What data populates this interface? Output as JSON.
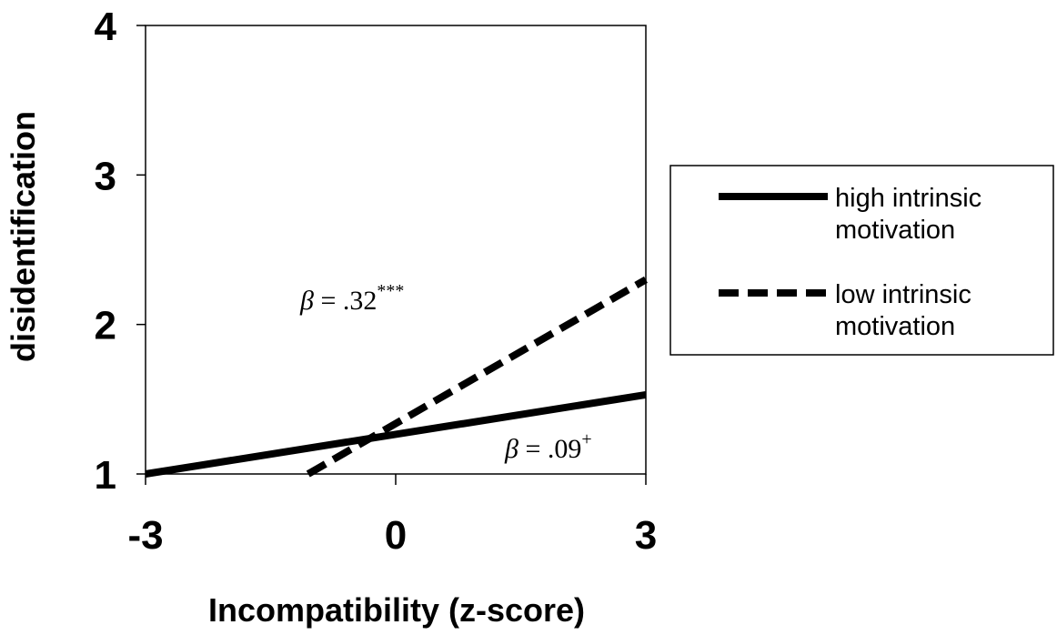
{
  "chart_data": {
    "type": "line",
    "xlabel": "Incompatibility (z-score)",
    "ylabel": "disidentification",
    "xlim": [
      -3,
      3
    ],
    "ylim": [
      1,
      4
    ],
    "x_ticks": [
      "-3",
      "0",
      "3"
    ],
    "y_ticks": [
      "1",
      "2",
      "3",
      "4"
    ],
    "grid": false,
    "legend_position": "right",
    "series": [
      {
        "name": "high intrinsic motivation",
        "style": "solid",
        "color": "#000000",
        "x": [
          -3,
          3
        ],
        "y": [
          1.0,
          1.53
        ]
      },
      {
        "name": "low intrinsic motivation",
        "style": "dashed",
        "color": "#000000",
        "x": [
          -1.05,
          3
        ],
        "y": [
          1.0,
          2.3
        ]
      }
    ],
    "legend": [
      {
        "line1": "high intrinsic",
        "line2": "motivation"
      },
      {
        "line1": "low intrinsic",
        "line2": "motivation"
      }
    ],
    "annotations": [
      {
        "symbol": "β",
        "text": " = .32",
        "sup": "***"
      },
      {
        "symbol": "β",
        "text": " = .09",
        "sup": "+"
      }
    ]
  }
}
